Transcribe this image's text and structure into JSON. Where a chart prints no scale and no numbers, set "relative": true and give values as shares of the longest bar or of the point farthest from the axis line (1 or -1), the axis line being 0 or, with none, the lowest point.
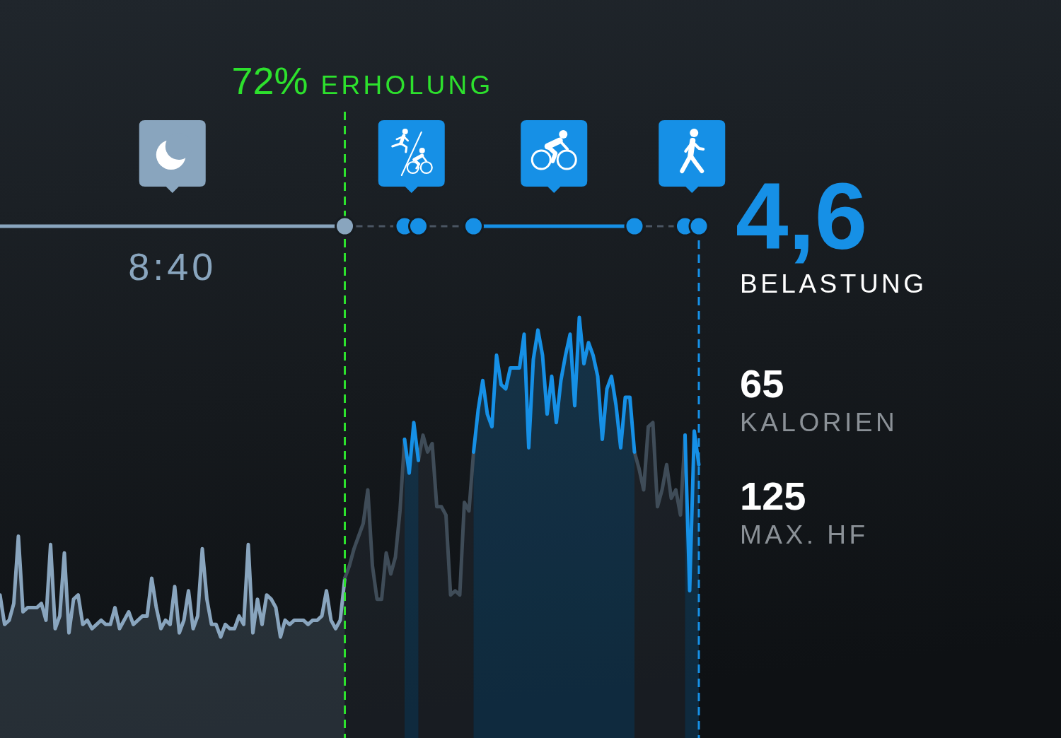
{
  "chart_data": [
    {
      "type": "area",
      "relative": true,
      "categories": [
        null,
        null,
        null,
        null,
        null,
        null,
        null,
        null,
        null,
        null,
        null,
        null,
        null,
        null,
        null,
        null,
        null,
        null,
        null,
        null,
        null,
        null,
        null,
        null,
        null,
        null,
        null,
        null,
        null,
        null,
        null,
        null,
        null,
        null,
        null,
        null,
        null,
        null,
        null,
        null,
        null,
        null,
        null,
        null,
        null,
        null,
        null,
        null,
        null,
        null,
        null,
        null,
        null,
        null,
        null,
        null,
        null,
        null,
        null,
        null,
        null,
        null,
        null,
        null,
        null,
        null,
        null,
        null,
        null,
        null,
        null,
        null,
        null,
        null,
        null,
        null,
        null,
        null,
        null,
        null,
        null,
        null,
        null,
        null,
        null,
        null,
        null,
        null,
        null,
        null,
        null,
        null,
        null,
        null,
        null,
        null,
        null,
        null,
        null,
        null,
        null,
        null,
        null,
        null,
        null,
        null,
        null,
        null,
        null,
        null,
        null,
        null,
        null,
        null,
        null,
        null,
        null,
        null,
        null,
        null,
        null,
        null,
        null,
        null,
        null,
        null,
        null,
        null,
        null,
        null,
        null,
        null,
        null,
        null,
        null,
        null,
        null,
        null,
        null,
        null,
        null,
        null,
        null,
        null,
        null,
        null,
        null,
        null,
        null,
        null,
        null,
        null,
        null
      ],
      "series": [
        {
          "color": "#89a5be",
          "values": [
            0.34,
            0.27,
            0.28,
            0.32,
            0.48,
            0.3,
            0.31,
            0.31,
            0.31,
            0.32,
            0.28,
            0.46,
            0.26,
            0.29,
            0.44,
            0.25,
            0.33,
            0.34,
            0.27,
            0.28,
            0.26,
            0.27,
            0.28,
            0.27,
            0.27,
            0.31,
            0.26,
            0.28,
            0.3,
            0.27,
            0.28,
            0.29,
            0.29,
            0.38,
            0.31,
            0.26,
            0.28,
            0.27,
            0.36,
            0.25,
            0.28,
            0.35,
            0.26,
            0.29,
            0.45,
            0.33,
            0.27,
            0.27,
            0.24,
            0.27,
            0.26,
            0.26,
            0.29,
            0.27,
            0.46,
            0.25,
            0.33,
            0.27,
            0.34,
            0.33,
            0.31,
            0.24,
            0.28,
            0.27,
            0.28,
            0.28,
            0.28,
            0.27,
            0.28,
            0.28,
            0.29,
            0.35,
            0.28,
            0.26,
            0.28,
            0.38,
            null,
            null,
            null,
            null,
            null,
            null,
            null,
            null,
            null,
            null,
            null,
            null,
            null,
            null,
            null,
            null,
            null,
            null,
            null,
            null,
            null,
            null,
            null,
            null,
            null,
            null,
            null,
            null,
            null,
            null,
            null,
            null,
            null,
            null,
            null,
            null,
            null,
            null,
            null,
            null,
            null,
            null,
            null,
            null,
            null,
            null,
            null,
            null,
            null,
            null,
            null,
            null,
            null,
            null,
            null,
            null,
            null,
            null,
            null,
            null,
            null,
            null,
            null,
            null,
            null,
            null,
            null,
            null,
            null,
            null,
            null,
            null,
            null,
            null,
            null,
            null,
            null
          ]
        },
        {
          "color": "#3f4c58",
          "values": [
            null,
            null,
            null,
            null,
            null,
            null,
            null,
            null,
            null,
            null,
            null,
            null,
            null,
            null,
            null,
            null,
            null,
            null,
            null,
            null,
            null,
            null,
            null,
            null,
            null,
            null,
            null,
            null,
            null,
            null,
            null,
            null,
            null,
            null,
            null,
            null,
            null,
            null,
            null,
            null,
            null,
            null,
            null,
            null,
            null,
            null,
            null,
            null,
            null,
            null,
            null,
            null,
            null,
            null,
            null,
            null,
            null,
            null,
            null,
            null,
            null,
            null,
            null,
            null,
            null,
            null,
            null,
            null,
            null,
            null,
            null,
            null,
            null,
            null,
            null,
            0.38,
            0.41,
            0.45,
            0.48,
            0.51,
            0.59,
            0.41,
            0.33,
            0.33,
            0.44,
            0.39,
            0.43,
            0.54,
            0.71,
            null,
            null,
            0.66,
            0.72,
            0.68,
            0.7,
            0.55,
            0.55,
            0.53,
            0.34,
            0.35,
            0.34,
            0.56,
            0.54,
            0.68,
            null,
            null,
            null,
            null,
            null,
            null,
            null,
            null,
            null,
            null,
            null,
            null,
            null,
            null,
            null,
            null,
            null,
            null,
            null,
            null,
            null,
            null,
            null,
            null,
            null,
            null,
            null,
            null,
            null,
            null,
            null,
            null,
            null,
            null,
            0.68,
            0.64,
            0.59,
            0.74,
            0.75,
            0.55,
            0.59,
            0.65,
            0.57,
            0.59,
            0.53,
            0.72,
            null,
            null,
            null
          ]
        },
        {
          "color": "#1690e6",
          "values": [
            null,
            null,
            null,
            null,
            null,
            null,
            null,
            null,
            null,
            null,
            null,
            null,
            null,
            null,
            null,
            null,
            null,
            null,
            null,
            null,
            null,
            null,
            null,
            null,
            null,
            null,
            null,
            null,
            null,
            null,
            null,
            null,
            null,
            null,
            null,
            null,
            null,
            null,
            null,
            null,
            null,
            null,
            null,
            null,
            null,
            null,
            null,
            null,
            null,
            null,
            null,
            null,
            null,
            null,
            null,
            null,
            null,
            null,
            null,
            null,
            null,
            null,
            null,
            null,
            null,
            null,
            null,
            null,
            null,
            null,
            null,
            null,
            null,
            null,
            null,
            null,
            null,
            null,
            null,
            null,
            null,
            null,
            null,
            null,
            null,
            null,
            null,
            null,
            0.71,
            0.63,
            0.75,
            0.66,
            null,
            null,
            null,
            null,
            null,
            null,
            null,
            null,
            null,
            null,
            null,
            0.68,
            0.78,
            0.85,
            0.77,
            0.74,
            0.91,
            0.84,
            0.83,
            0.88,
            0.88,
            0.88,
            0.96,
            0.69,
            0.9,
            0.97,
            0.91,
            0.77,
            0.86,
            0.75,
            0.85,
            0.91,
            0.96,
            0.79,
            1,
            0.89,
            0.94,
            0.91,
            0.86,
            0.71,
            0.83,
            0.86,
            0.79,
            0.69,
            0.81,
            0.81,
            0.68,
            null,
            null,
            null,
            null,
            null,
            null,
            null,
            null,
            null,
            null,
            0.72,
            0.35,
            0.73,
            0.65
          ]
        }
      ],
      "ref_lines": [
        {
          "axis": "x",
          "label": "72% ERHOLUNG",
          "color": "#2de12d",
          "line_style": "dashed"
        },
        {
          "axis": "x",
          "color": "#1690e6",
          "line_style": "dashed"
        }
      ],
      "annotations": [
        "8:40"
      ]
    },
    {
      "type": "other",
      "annotations": [
        "4,6",
        "BELASTUNG",
        "65",
        "KALORIEN",
        "125",
        "MAX. HF"
      ]
    }
  ]
}
